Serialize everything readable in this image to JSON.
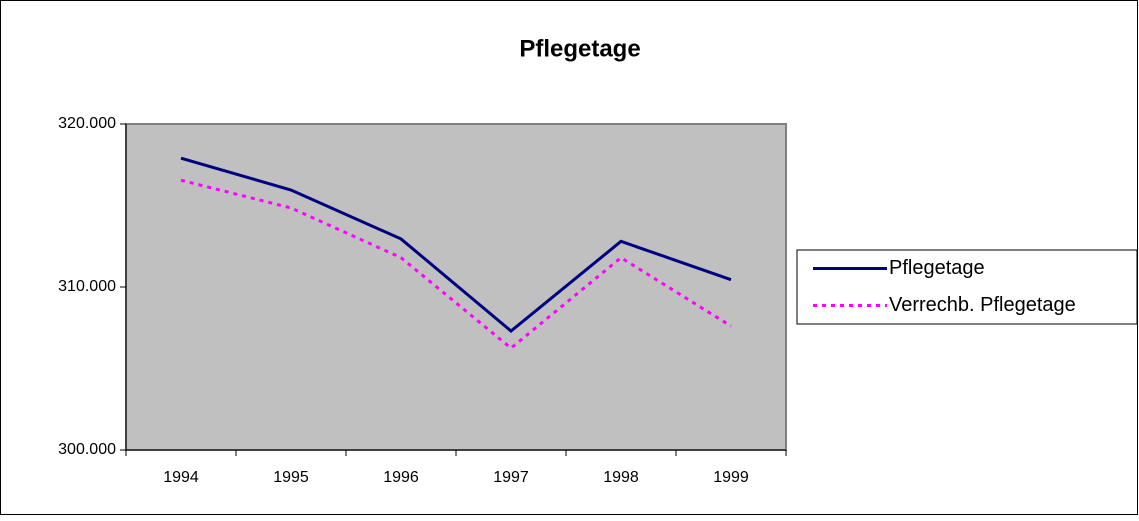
{
  "chart_data": {
    "type": "line",
    "title": "Pflegetage",
    "categories": [
      "1994",
      "1995",
      "1996",
      "1997",
      "1998",
      "1999"
    ],
    "series": [
      {
        "name": "Pflegetage",
        "color": "#000080",
        "dash": "solid",
        "values": [
          317900,
          315950,
          312950,
          307300,
          312800,
          310450
        ]
      },
      {
        "name": "Verrechb. Pflegetage",
        "color": "#ff00ff",
        "dash": "dotted",
        "values": [
          316550,
          314850,
          311800,
          306250,
          311800,
          307600
        ]
      }
    ],
    "ylim": [
      300000,
      320000
    ],
    "yticks": [
      {
        "value": 300000,
        "label": "300.000"
      },
      {
        "value": 310000,
        "label": "310.000"
      },
      {
        "value": 320000,
        "label": "320.000"
      }
    ],
    "grid": false,
    "legend": "right",
    "plot_background": "#c0c0c0"
  }
}
